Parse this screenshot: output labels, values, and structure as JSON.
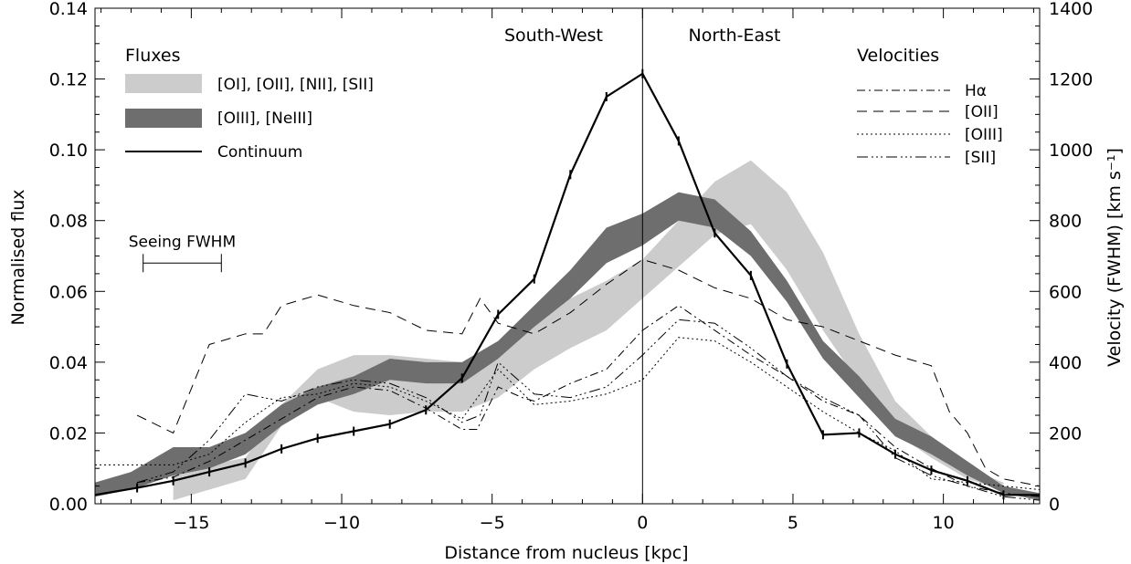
{
  "chart_data": {
    "type": "line",
    "xlabel": "Distance from nucleus [kpc]",
    "ylabel_left": "Normalised flux",
    "ylabel_right": "Velocity (FWHM) [km s⁻¹]",
    "xlim": [
      -18.2,
      13.2
    ],
    "ylim_left": [
      0,
      0.14
    ],
    "ylim_right": [
      0,
      1400
    ],
    "x_ticks": [
      -15,
      -10,
      -5,
      0,
      5,
      10
    ],
    "x_tick_labels": [
      "−15",
      "−10",
      "−5",
      "0",
      "5",
      "10"
    ],
    "y_left_ticks": [
      0.0,
      0.02,
      0.04,
      0.06,
      0.08,
      0.1,
      0.12,
      0.14
    ],
    "y_left_tick_labels": [
      "0.00",
      "0.02",
      "0.04",
      "0.06",
      "0.08",
      "0.10",
      "0.12",
      "0.14"
    ],
    "y_right_ticks": [
      0,
      200,
      400,
      600,
      800,
      1000,
      1200,
      1400
    ],
    "y_right_tick_labels": [
      "0",
      "200",
      "400",
      "600",
      "800",
      "1000",
      "1200",
      "1400"
    ],
    "region_labels": {
      "left": "South-West",
      "right": "North-East"
    },
    "legend_fluxes": {
      "title": "Fluxes",
      "entries": [
        "[OI], [OII], [NII], [SII]",
        "[OIII], [NeIII]",
        "Continuum"
      ]
    },
    "legend_velocities": {
      "title": "Velocities",
      "entries": [
        "Hα",
        "[OII]",
        "[OIII]",
        "[SII]"
      ]
    },
    "seeing": {
      "label": "Seeing FWHM",
      "x_start": -16.6,
      "x_end": -14.0,
      "y": 0.068
    },
    "colors": {
      "band_light": "#cccccc",
      "band_dark": "#6e6e6e",
      "line": "#000000"
    },
    "bands": [
      {
        "name": "[OI], [OII], [NII], [SII]",
        "fill": "#cccccc",
        "x": [
          -15.6,
          -13.2,
          -12.0,
          -10.8,
          -9.6,
          -8.4,
          -7.2,
          -6.0,
          -4.8,
          -3.6,
          -2.4,
          -1.2,
          0.0,
          1.2,
          2.4,
          3.6,
          4.8,
          6.0,
          7.2,
          8.4,
          9.6,
          10.8,
          12.0
        ],
        "lower": [
          0.001,
          0.007,
          0.022,
          0.03,
          0.026,
          0.025,
          0.026,
          0.026,
          0.03,
          0.038,
          0.044,
          0.049,
          0.058,
          0.067,
          0.076,
          0.079,
          0.066,
          0.049,
          0.034,
          0.02,
          0.013,
          0.007,
          0.004
        ],
        "upper": [
          0.009,
          0.013,
          0.028,
          0.038,
          0.042,
          0.042,
          0.041,
          0.04,
          0.044,
          0.051,
          0.058,
          0.063,
          0.069,
          0.08,
          0.091,
          0.097,
          0.088,
          0.071,
          0.048,
          0.029,
          0.019,
          0.01,
          0.006
        ]
      },
      {
        "name": "[OIII], [NeIII]",
        "fill": "#6e6e6e",
        "x": [
          -18.2,
          -17.0,
          -15.6,
          -14.4,
          -13.2,
          -12.0,
          -10.8,
          -9.6,
          -8.4,
          -7.2,
          -6.0,
          -4.8,
          -3.6,
          -2.4,
          -1.2,
          0.0,
          1.2,
          2.4,
          3.6,
          4.8,
          6.0,
          7.2,
          8.4,
          9.6,
          10.8,
          12.0,
          13.2
        ],
        "lower": [
          0.002,
          0.004,
          0.008,
          0.01,
          0.014,
          0.022,
          0.028,
          0.031,
          0.035,
          0.034,
          0.034,
          0.041,
          0.05,
          0.058,
          0.068,
          0.073,
          0.08,
          0.078,
          0.07,
          0.057,
          0.041,
          0.03,
          0.019,
          0.014,
          0.008,
          0.003,
          0.001
        ],
        "upper": [
          0.006,
          0.009,
          0.016,
          0.016,
          0.02,
          0.028,
          0.033,
          0.036,
          0.041,
          0.04,
          0.04,
          0.046,
          0.056,
          0.066,
          0.078,
          0.082,
          0.088,
          0.086,
          0.077,
          0.063,
          0.046,
          0.036,
          0.024,
          0.019,
          0.012,
          0.005,
          0.003
        ]
      }
    ],
    "continuum": {
      "name": "Continuum",
      "x": [
        -18.2,
        -16.8,
        -15.6,
        -14.4,
        -13.2,
        -12.0,
        -10.8,
        -9.6,
        -8.4,
        -7.2,
        -6.0,
        -4.8,
        -3.6,
        -2.4,
        -1.2,
        0.0,
        1.2,
        2.4,
        3.6,
        4.8,
        6.0,
        7.2,
        8.4,
        9.6,
        10.8,
        12.0,
        13.2
      ],
      "y": [
        0.0025,
        0.0045,
        0.0065,
        0.009,
        0.0115,
        0.0155,
        0.0185,
        0.0205,
        0.0225,
        0.0265,
        0.0355,
        0.0535,
        0.0635,
        0.093,
        0.115,
        0.1215,
        0.1025,
        0.0765,
        0.0645,
        0.0395,
        0.0195,
        0.02,
        0.014,
        0.0095,
        0.0065,
        0.0025,
        0.0025
      ],
      "err_ticks": [
        -16.8,
        -15.6,
        -14.4,
        -13.2,
        -12.0,
        -10.8,
        -9.6,
        -8.4,
        -7.2,
        -6.0,
        -4.8,
        -3.6,
        -2.4,
        -1.2,
        0.0,
        1.2,
        2.4,
        3.6,
        4.8,
        6.0,
        7.2,
        8.4,
        9.6,
        10.8,
        12.0
      ]
    },
    "velocities": [
      {
        "name": "Hα",
        "dash": "9 4 2 4",
        "x": [
          -16.8,
          -15.6,
          -14.4,
          -13.2,
          -12.0,
          -10.8,
          -9.6,
          -8.4,
          -7.2,
          -6.0,
          -5.5,
          -4.8,
          -4.0,
          -3.6,
          -2.4,
          -1.2,
          0.0,
          1.2,
          2.4,
          3.6,
          4.8,
          6.0,
          7.2,
          8.4,
          9.6,
          10.8,
          12.0,
          13.2
        ],
        "y": [
          60,
          75,
          120,
          180,
          240,
          300,
          330,
          320,
          270,
          210,
          210,
          330,
          300,
          290,
          340,
          380,
          490,
          560,
          490,
          420,
          360,
          290,
          250,
          160,
          100,
          50,
          30,
          20
        ]
      },
      {
        "name": "[OII]",
        "dash": "11 7",
        "x": [
          -16.8,
          -15.6,
          -14.4,
          -13.2,
          -12.6,
          -12.0,
          -10.8,
          -9.6,
          -8.4,
          -7.2,
          -6.0,
          -5.4,
          -4.8,
          -3.6,
          -2.4,
          -1.2,
          0.0,
          1.2,
          2.4,
          3.6,
          4.8,
          6.0,
          7.2,
          8.4,
          9.6,
          10.2,
          10.8,
          11.4,
          12.0,
          12.6,
          13.2
        ],
        "y": [
          250,
          200,
          450,
          480,
          480,
          560,
          590,
          560,
          540,
          490,
          480,
          580,
          510,
          480,
          540,
          620,
          690,
          660,
          610,
          580,
          520,
          500,
          460,
          420,
          390,
          260,
          200,
          100,
          70,
          60,
          50
        ]
      },
      {
        "name": "[OIII]",
        "dash": "2 3",
        "x": [
          -18.2,
          -16.8,
          -15.6,
          -14.4,
          -13.2,
          -12.0,
          -10.8,
          -9.6,
          -8.4,
          -7.2,
          -6.0,
          -4.8,
          -3.6,
          -2.4,
          -1.2,
          0.0,
          1.2,
          2.4,
          3.6,
          4.8,
          6.0,
          7.2,
          8.4,
          9.6,
          10.8,
          12.0,
          13.2
        ],
        "y": [
          110,
          110,
          110,
          140,
          230,
          300,
          310,
          340,
          330,
          290,
          240,
          380,
          280,
          290,
          310,
          350,
          470,
          460,
          400,
          330,
          260,
          200,
          150,
          70,
          60,
          50,
          40
        ]
      },
      {
        "name": "[SII]",
        "dash": "12 4 2 3 2 3 2 4",
        "x": [
          -16.8,
          -15.6,
          -14.4,
          -13.2,
          -12.0,
          -10.8,
          -9.6,
          -8.4,
          -7.2,
          -6.0,
          -5.4,
          -4.8,
          -3.6,
          -2.4,
          -1.2,
          0.0,
          1.2,
          2.4,
          3.6,
          4.8,
          6.0,
          7.2,
          8.4,
          9.6,
          10.8,
          12.0,
          13.2
        ],
        "y": [
          60,
          90,
          180,
          310,
          290,
          330,
          350,
          340,
          300,
          230,
          250,
          400,
          310,
          300,
          330,
          420,
          520,
          510,
          440,
          360,
          300,
          250,
          130,
          80,
          50,
          20,
          10
        ]
      }
    ]
  }
}
